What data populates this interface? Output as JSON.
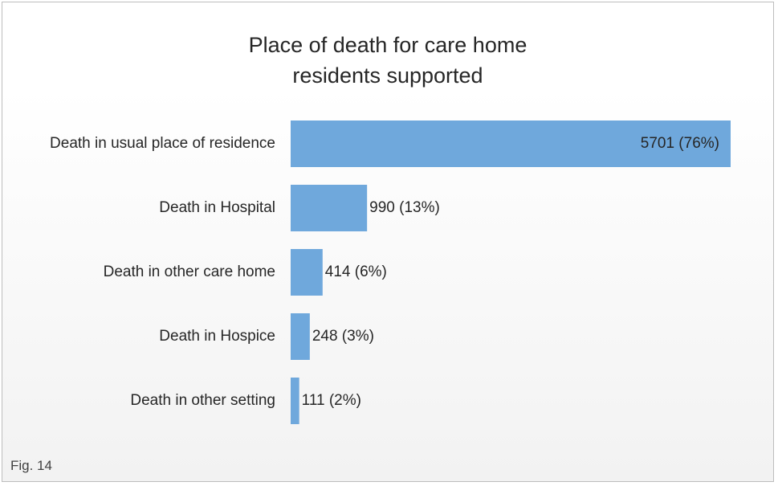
{
  "figure_label": "Fig. 14",
  "chart_data": {
    "type": "bar",
    "orientation": "horizontal",
    "title": "Place of death for care home\nresidents supported",
    "xlabel": "",
    "ylabel": "",
    "categories": [
      "Death in usual place of residence",
      "Death in Hospital",
      "Death in other care home",
      "Death in Hospice",
      "Death in other setting"
    ],
    "values": [
      5701,
      990,
      414,
      248,
      111
    ],
    "data_labels": [
      "5701 (76%)",
      "990 (13%)",
      "414 (6%)",
      "248 (3%)",
      "111 (2%)"
    ],
    "xlim": [
      0,
      5701
    ],
    "grid": false,
    "legend": "none",
    "bar_color": "#6fa8dc"
  }
}
